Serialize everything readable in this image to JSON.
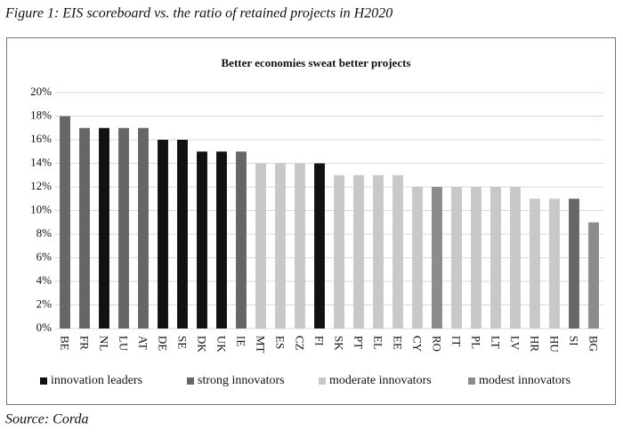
{
  "caption": "Figure 1: EIS scoreboard vs. the ratio of retained projects in H2020",
  "source": "Source: Corda",
  "chart_data": {
    "type": "bar",
    "title": "Better economies sweat better projects",
    "categories": [
      "BE",
      "FR",
      "NL",
      "LU",
      "AT",
      "DE",
      "SE",
      "DK",
      "UK",
      "IE",
      "MT",
      "ES",
      "CZ",
      "FI",
      "SK",
      "PT",
      "EL",
      "EE",
      "CY",
      "RO",
      "IT",
      "PL",
      "LT",
      "LV",
      "HR",
      "HU",
      "SI",
      "BG"
    ],
    "series": [
      {
        "name": "innovation leaders",
        "color": "#111111",
        "values": [
          null,
          null,
          17,
          null,
          null,
          16,
          16,
          15,
          15,
          null,
          null,
          null,
          null,
          14,
          null,
          null,
          null,
          null,
          null,
          null,
          null,
          null,
          null,
          null,
          null,
          null,
          null,
          null
        ]
      },
      {
        "name": "strong innovators",
        "color": "#666666",
        "values": [
          18,
          17,
          null,
          17,
          17,
          null,
          null,
          null,
          null,
          15,
          null,
          null,
          null,
          null,
          null,
          null,
          null,
          null,
          null,
          null,
          null,
          null,
          null,
          null,
          null,
          null,
          11,
          null
        ]
      },
      {
        "name": "moderate innovators",
        "color": "#c8c8c8",
        "values": [
          null,
          null,
          null,
          null,
          null,
          null,
          null,
          null,
          null,
          null,
          14,
          14,
          14,
          null,
          13,
          13,
          13,
          13,
          12,
          null,
          12,
          12,
          12,
          12,
          11,
          11,
          null,
          null
        ]
      },
      {
        "name": "modest innovators",
        "color": "#8c8c8c",
        "values": [
          null,
          null,
          null,
          null,
          null,
          null,
          null,
          null,
          null,
          null,
          null,
          null,
          null,
          null,
          null,
          null,
          null,
          null,
          null,
          12,
          null,
          null,
          null,
          null,
          null,
          null,
          null,
          9
        ]
      }
    ],
    "ylim": [
      0,
      20
    ],
    "yticks": [
      {
        "value": 0,
        "label": "0%"
      },
      {
        "value": 2,
        "label": "2%"
      },
      {
        "value": 4,
        "label": "4%"
      },
      {
        "value": 6,
        "label": "6%"
      },
      {
        "value": 8,
        "label": "8%"
      },
      {
        "value": 10,
        "label": "10%"
      },
      {
        "value": 12,
        "label": "12%"
      },
      {
        "value": 14,
        "label": "14%"
      },
      {
        "value": 16,
        "label": "16%"
      },
      {
        "value": 18,
        "label": "18%"
      },
      {
        "value": 20,
        "label": "20%"
      }
    ],
    "grid": true
  }
}
